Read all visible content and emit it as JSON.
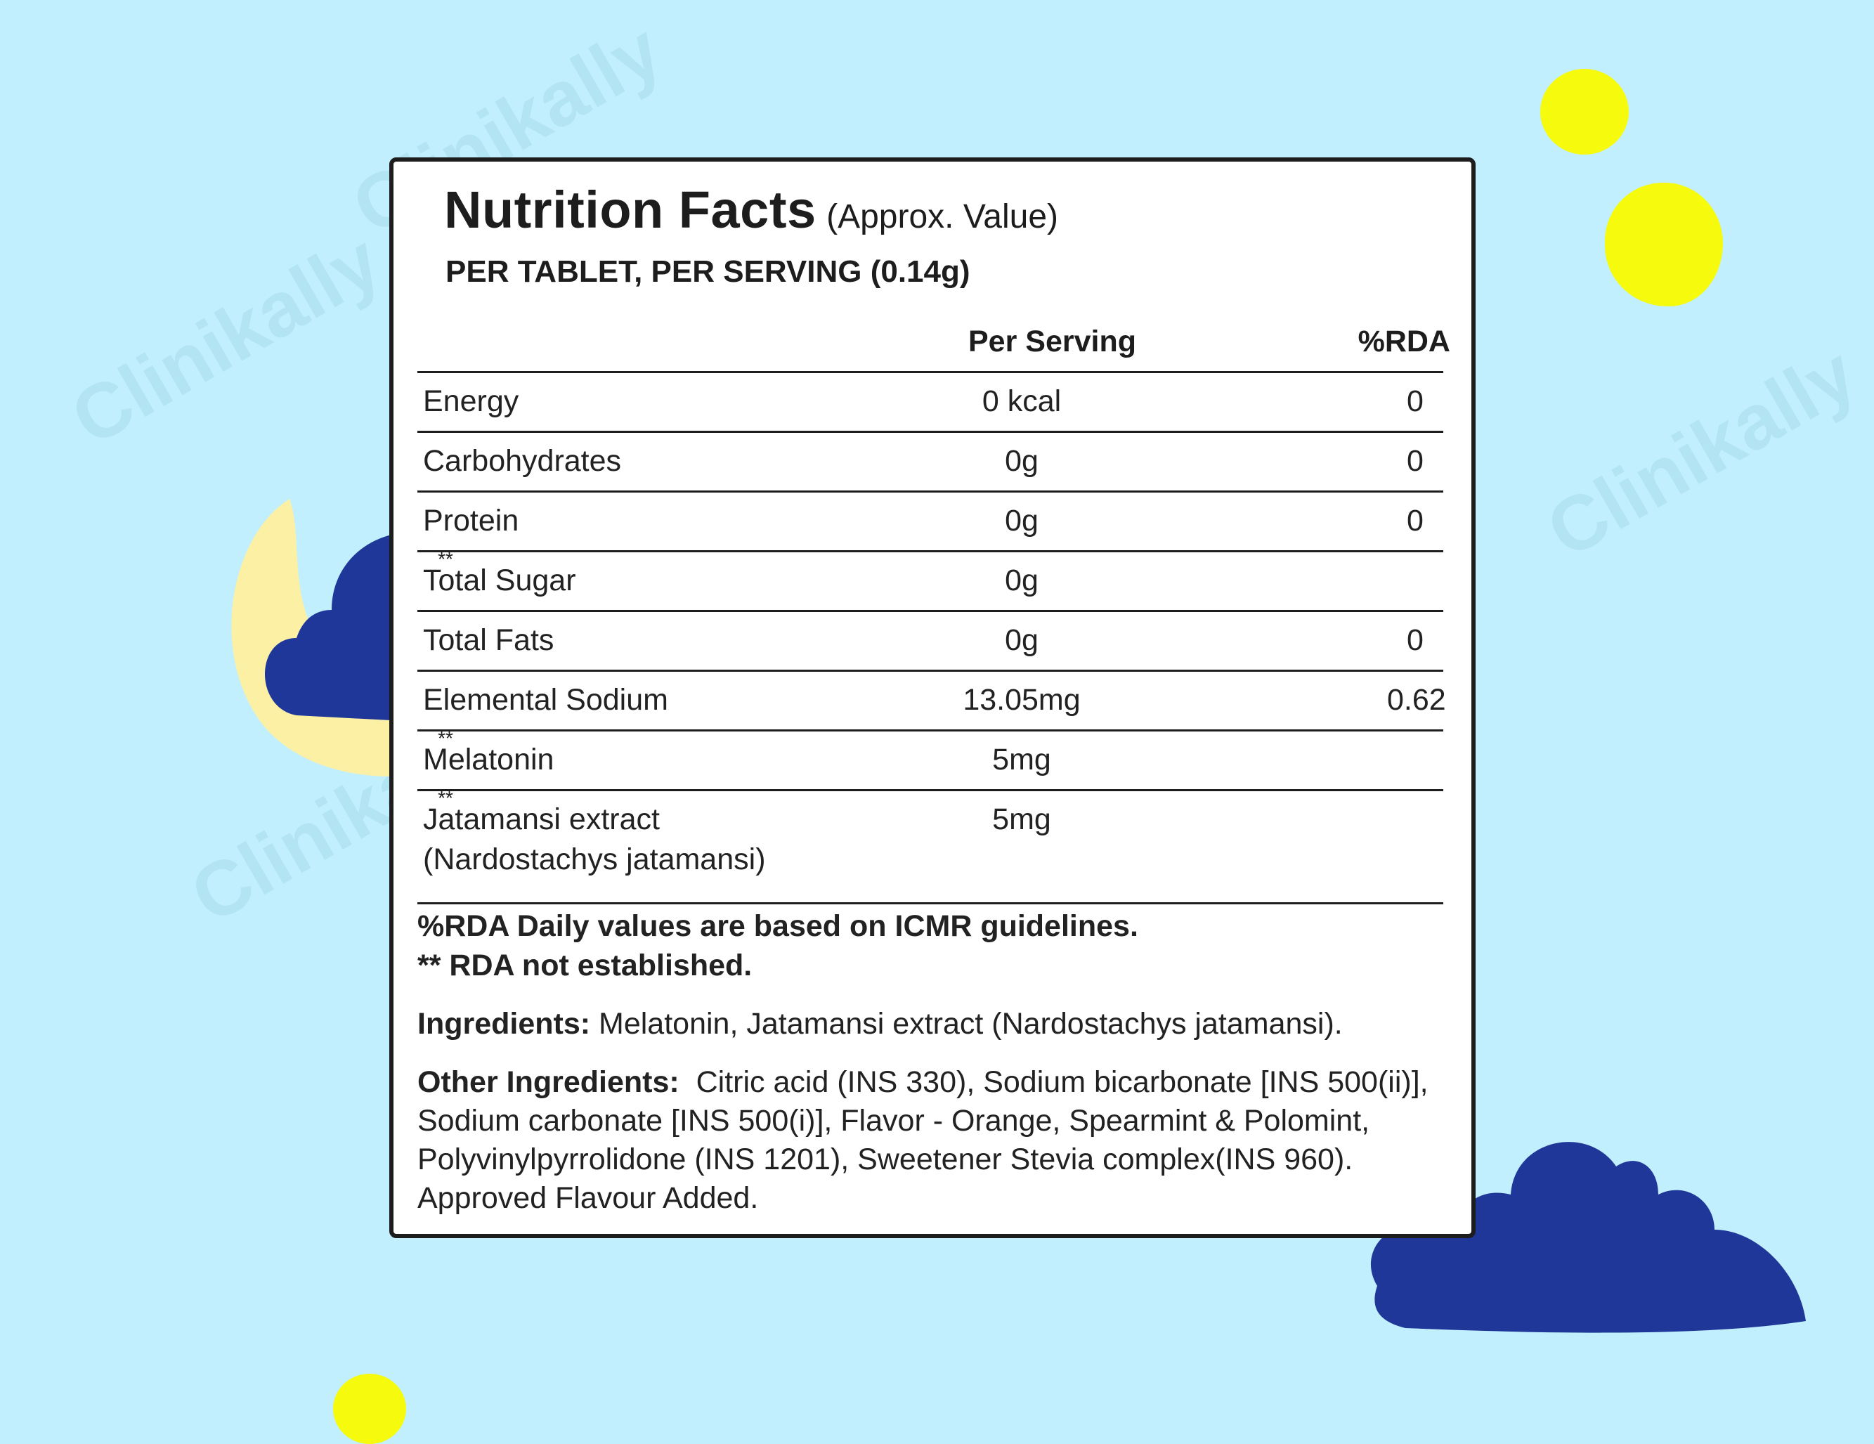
{
  "colors": {
    "background": "#c2effd",
    "panel": "#ffffff",
    "border": "#1d1d1d",
    "yellow": "#f6fa0c",
    "cloud": "#1e3798",
    "moon": "#fbf0a4"
  },
  "watermark": "Clinikally",
  "label": {
    "title": "Nutrition Facts",
    "subtitle": "(Approx. Value)",
    "serving_line": "PER TABLET, PER SERVING (0.14g)",
    "columns": {
      "per_serving": "Per Serving",
      "rda": "%RDA"
    },
    "rows": [
      {
        "name": "Energy",
        "value": "0 kcal",
        "rda": "0"
      },
      {
        "name": "Carbohydrates",
        "value": "0g",
        "rda": "0"
      },
      {
        "name": "Protein",
        "value": "0g",
        "rda": "0"
      },
      {
        "name": "Total Sugar",
        "value": "0g",
        "rda": "**"
      },
      {
        "name": "Total Fats",
        "value": "0g",
        "rda": "0"
      },
      {
        "name": "Elemental Sodium",
        "value": "13.05mg",
        "rda": "0.62"
      },
      {
        "name": "Melatonin",
        "value": "5mg",
        "rda": "**"
      },
      {
        "name": "Jatamansi extract",
        "name_sub": "(Nardostachys jatamansi)",
        "value": "5mg",
        "rda": "**"
      }
    ],
    "note_rda": "%RDA Daily values are based on ICMR guidelines.",
    "note_stars": "** RDA not established.",
    "ingredients_label": "Ingredients:",
    "ingredients_text": " Melatonin, Jatamansi extract (Nardostachys jatamansi).",
    "other_label": "Other Ingredients:",
    "other_lines": [
      "Citric acid (INS 330), Sodium bicarbonate [INS 500(ii)],",
      "Sodium carbonate [INS 500(i)], Flavor - Orange, Spearmint & Polomint,",
      "Polyvinylpyrrolidone (INS 1201), Sweetener Stevia complex(INS 960).",
      "Approved Flavour Added."
    ]
  }
}
